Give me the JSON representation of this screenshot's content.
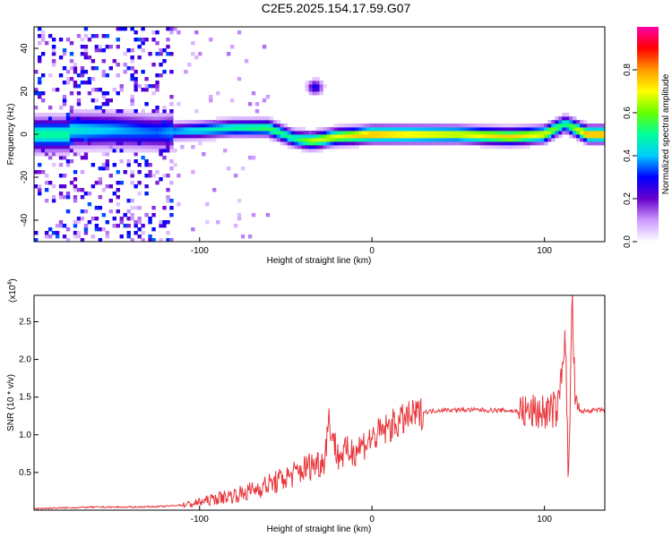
{
  "title": "C2E5.2025.154.17.59.G07",
  "chart_data": [
    {
      "type": "heatmap",
      "xlabel": "Height of straight line (km)",
      "ylabel": "Frequency (Hz)",
      "xlim": [
        -196,
        135
      ],
      "ylim": [
        -50,
        50
      ],
      "xticks": [
        -100,
        0,
        100
      ],
      "yticks": [
        -40,
        -20,
        0,
        20,
        40
      ],
      "colorbar": {
        "label": "Normalized spectral amplitude",
        "range": [
          0,
          1
        ],
        "ticks": [
          "0.0",
          "0.2",
          "0.4",
          "0.6",
          "0.8"
        ],
        "colormap": [
          "#ffffff",
          "#cc99ff",
          "#6600cc",
          "#0000ff",
          "#00ccff",
          "#00ff99",
          "#66ff00",
          "#ffff00",
          "#ff9900",
          "#ff0000",
          "#ff00aa"
        ]
      },
      "ridge": [
        {
          "x": -175,
          "f": 2,
          "amp": 0.45
        },
        {
          "x": -150,
          "f": 2,
          "amp": 0.4
        },
        {
          "x": -125,
          "f": 1,
          "amp": 0.35
        },
        {
          "x": -100,
          "f": 2,
          "amp": 0.45
        },
        {
          "x": -80,
          "f": 3,
          "amp": 0.5
        },
        {
          "x": -60,
          "f": 3,
          "amp": 0.55
        },
        {
          "x": -45,
          "f": -2,
          "amp": 0.5
        },
        {
          "x": -35,
          "f": -3,
          "amp": 0.65
        },
        {
          "x": -20,
          "f": -1,
          "amp": 0.7
        },
        {
          "x": 0,
          "f": 0,
          "amp": 0.8
        },
        {
          "x": 20,
          "f": 0,
          "amp": 0.75
        },
        {
          "x": 50,
          "f": 0,
          "amp": 0.7
        },
        {
          "x": 80,
          "f": -1,
          "amp": 0.75
        },
        {
          "x": 100,
          "f": 0,
          "amp": 0.7
        },
        {
          "x": 112,
          "f": 5,
          "amp": 0.5
        },
        {
          "x": 125,
          "f": 0,
          "amp": 0.8
        },
        {
          "x": 135,
          "f": 0,
          "amp": 0.8
        }
      ],
      "features": [
        {
          "x": -33,
          "f": 22,
          "amp": 0.3
        }
      ]
    },
    {
      "type": "line",
      "xlabel": "Height of straight line (km)",
      "ylabel": "SNR (10 * v/v)",
      "multiplier": "(x10",
      "exponent": "4",
      "xlim": [
        -196,
        135
      ],
      "ylim": [
        0,
        2.85
      ],
      "xticks": [
        -100,
        0,
        100
      ],
      "yticks": [
        "0.5",
        "1.0",
        "1.5",
        "2.0",
        "2.5"
      ],
      "color": "#e8383d",
      "series": [
        {
          "x": -196,
          "y": 0.02
        },
        {
          "x": -180,
          "y": 0.03
        },
        {
          "x": -160,
          "y": 0.04
        },
        {
          "x": -140,
          "y": 0.04
        },
        {
          "x": -120,
          "y": 0.05
        },
        {
          "x": -105,
          "y": 0.08
        },
        {
          "x": -95,
          "y": 0.13
        },
        {
          "x": -85,
          "y": 0.18
        },
        {
          "x": -75,
          "y": 0.22
        },
        {
          "x": -65,
          "y": 0.3
        },
        {
          "x": -55,
          "y": 0.38
        },
        {
          "x": -45,
          "y": 0.48
        },
        {
          "x": -35,
          "y": 0.6
        },
        {
          "x": -28,
          "y": 0.65
        },
        {
          "x": -25,
          "y": 1.2
        },
        {
          "x": -20,
          "y": 0.72
        },
        {
          "x": -10,
          "y": 0.8
        },
        {
          "x": 0,
          "y": 0.95
        },
        {
          "x": 10,
          "y": 1.1
        },
        {
          "x": 20,
          "y": 1.22
        },
        {
          "x": 30,
          "y": 1.3
        },
        {
          "x": 40,
          "y": 1.33
        },
        {
          "x": 60,
          "y": 1.33
        },
        {
          "x": 80,
          "y": 1.32
        },
        {
          "x": 90,
          "y": 1.3
        },
        {
          "x": 100,
          "y": 1.3
        },
        {
          "x": 108,
          "y": 1.35
        },
        {
          "x": 112,
          "y": 2.4
        },
        {
          "x": 114,
          "y": 0.3
        },
        {
          "x": 116,
          "y": 2.85
        },
        {
          "x": 118,
          "y": 1.3
        },
        {
          "x": 125,
          "y": 1.32
        },
        {
          "x": 135,
          "y": 1.33
        }
      ]
    }
  ]
}
